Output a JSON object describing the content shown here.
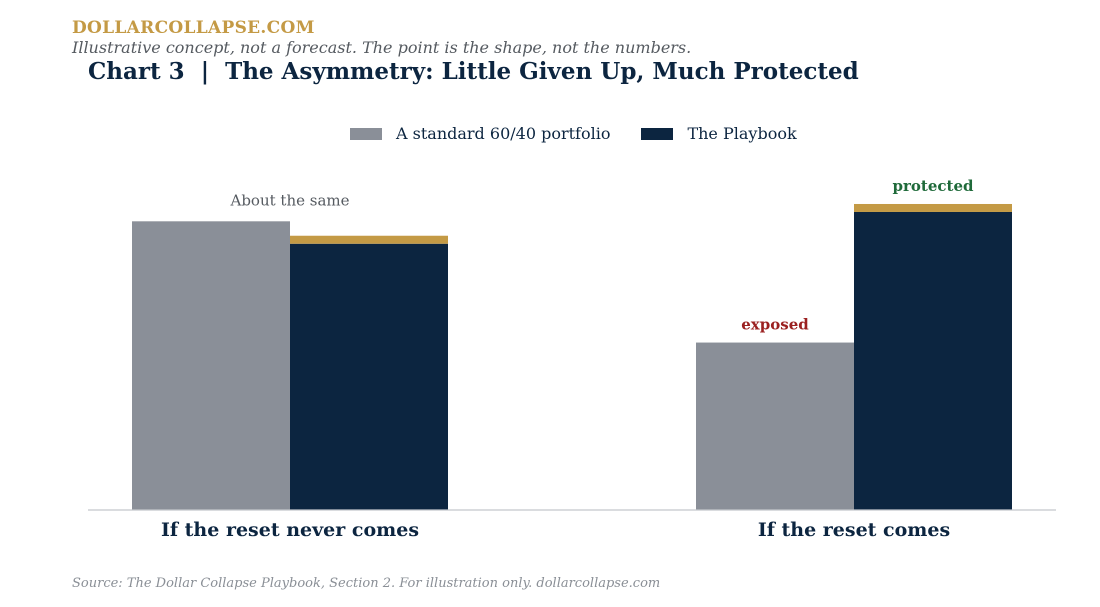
{
  "header": {
    "brand": "DOLLARCOLLAPSE.COM",
    "subtitle": "Illustrative concept, not a forecast. The point is the shape, not the numbers.",
    "title": "Chart 3  |  The Asymmetry: Little Given Up, Much Protected"
  },
  "colors": {
    "standard": "#8a8f98",
    "playbook": "#0c2540",
    "accent_cap": "#c49a45",
    "exposed": "#9b2020",
    "protected": "#1f6a3a",
    "neutral_text": "#555a60"
  },
  "chart_data": {
    "type": "bar",
    "categories": [
      "If the reset never comes",
      "If the reset comes"
    ],
    "series": [
      {
        "name": "A standard 60/40 portfolio",
        "values": [
          100,
          58
        ],
        "color": "#8a8f98"
      },
      {
        "name": "The Playbook",
        "values": [
          95,
          106
        ],
        "color": "#0c2540"
      }
    ],
    "annotations": [
      {
        "category": 0,
        "text": "About the same",
        "style": "neutral"
      },
      {
        "category": 1,
        "series": 0,
        "text": "exposed",
        "style": "exposed"
      },
      {
        "category": 1,
        "series": 1,
        "text": "protected",
        "style": "protected"
      }
    ],
    "ylim": [
      0,
      115
    ],
    "grid": false,
    "legend": "top-center"
  },
  "footer": {
    "source": "Source: The Dollar Collapse Playbook, Section 2. For illustration only. dollarcollapse.com"
  }
}
